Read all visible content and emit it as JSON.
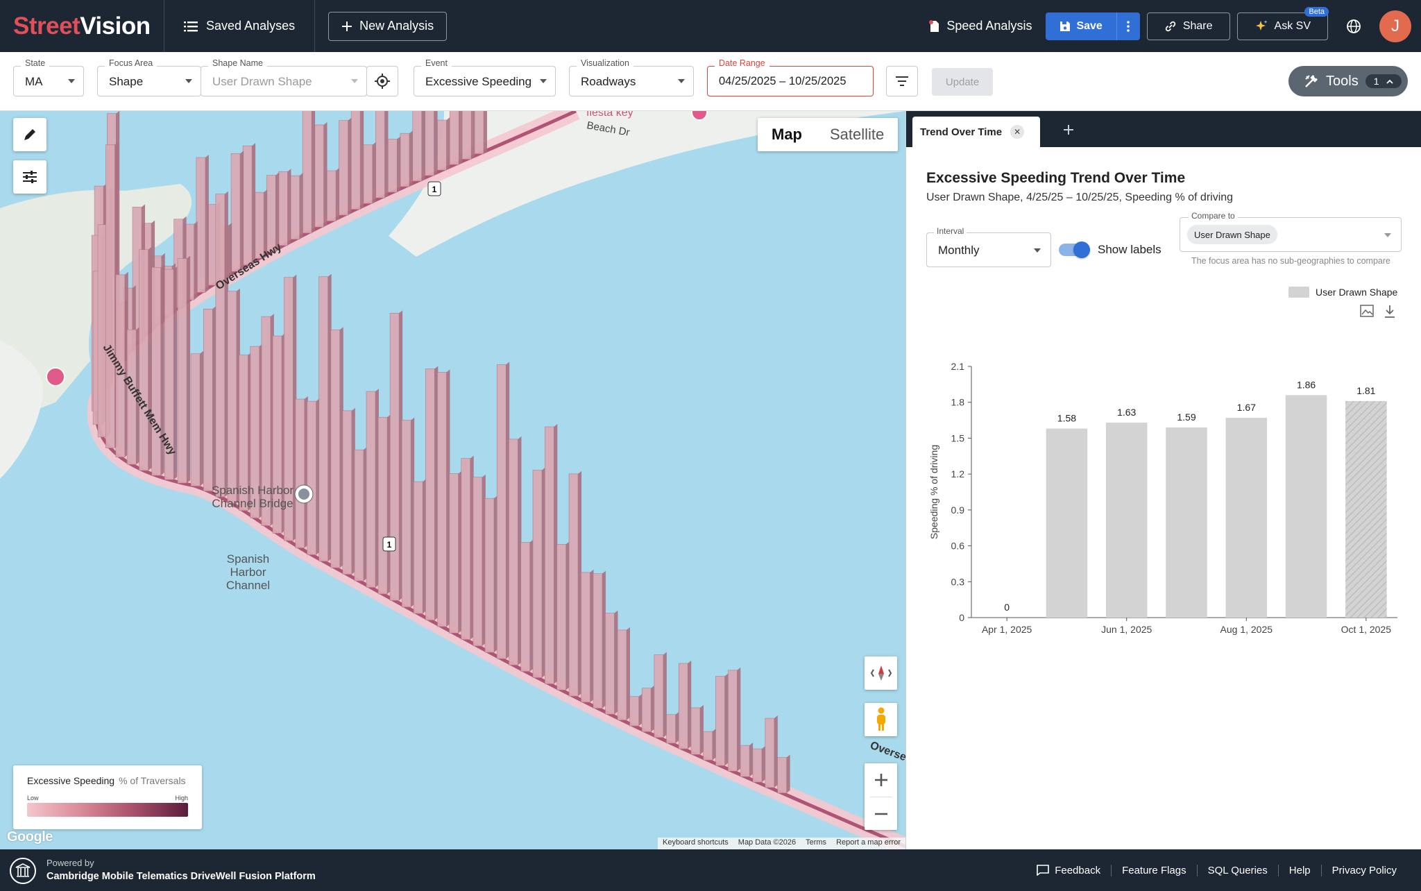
{
  "app": {
    "logo_part1": "Street",
    "logo_part2": "Vision"
  },
  "nav": {
    "saved_analyses": "Saved Analyses",
    "new_analysis": "New Analysis",
    "speed_analysis": "Speed Analysis",
    "save": "Save",
    "share": "Share",
    "ask_sv": "Ask SV",
    "beta": "Beta",
    "avatar_initial": "J"
  },
  "filters": {
    "state": {
      "label": "State",
      "value": "MA"
    },
    "focus_area": {
      "label": "Focus Area",
      "value": "Shape"
    },
    "shape_name": {
      "label": "Shape Name",
      "placeholder": "User Drawn Shape"
    },
    "event": {
      "label": "Event",
      "value": "Excessive Speeding"
    },
    "visualization": {
      "label": "Visualization",
      "value": "Roadways"
    },
    "date_range": {
      "label": "Date Range",
      "value": "04/25/2025 – 10/25/2025"
    },
    "update": "Update",
    "tools": "Tools",
    "tools_count": "1"
  },
  "map": {
    "view_map": "Map",
    "view_satellite": "Satellite",
    "labels": {
      "fiesta_key": "fiesta key",
      "beach_dr": "Beach Dr",
      "overseas_hwy": "Overseas Hwy",
      "overseas_hwy_2": "Overse",
      "jimmy_buffett": "Jimmy Buffett Mem Hwy",
      "bridge": "Spanish Harbor Channel Bridge",
      "channel": "Spanish Harbor Channel",
      "shield": "1"
    },
    "legend": {
      "title": "Excessive Speeding",
      "unit": "% of Traversals",
      "low": "Low",
      "high": "High"
    },
    "google": "Google",
    "attribution": [
      "Keyboard shortcuts",
      "Map Data ©2026",
      "Terms",
      "Report a map error"
    ],
    "colors": {
      "water": "#a8d9ec",
      "land": "#eef0ed",
      "bar": "#d9a9b3"
    }
  },
  "panel": {
    "tab_label": "Trend Over Time",
    "title": "Excessive Speeding Trend Over Time",
    "subtitle": "User Drawn Shape, 4/25/25 – 10/25/25, Speeding % of driving",
    "interval": {
      "label": "Interval",
      "value": "Monthly"
    },
    "show_labels": "Show labels",
    "compare": {
      "label": "Compare to",
      "chip": "User Drawn Shape"
    },
    "helper": "The focus area has no sub-geographies to compare",
    "legend_series": "User Drawn Shape"
  },
  "chart_data": {
    "type": "bar",
    "title": "Excessive Speeding Trend Over Time",
    "ylabel": "Speeding % of driving",
    "xlabel": "",
    "categories": [
      "Apr 2025",
      "May 2025",
      "Jun 2025",
      "Jul 2025",
      "Aug 2025",
      "Sep 2025",
      "Oct 2025"
    ],
    "x_tick_labels": [
      "Apr 1, 2025",
      "Jun 1, 2025",
      "Aug 1, 2025",
      "Oct 1, 2025"
    ],
    "series": [
      {
        "name": "User Drawn Shape",
        "values": [
          0,
          1.58,
          1.63,
          1.59,
          1.67,
          1.86,
          1.81
        ],
        "labels": [
          "0",
          "1.58",
          "1.63",
          "1.59",
          "1.67",
          "1.86",
          "1.81"
        ]
      }
    ],
    "partial_last": true,
    "ylim": [
      0,
      2.1
    ],
    "yticks": [
      "0",
      "0.3",
      "0.6",
      "0.9",
      "1.2",
      "1.5",
      "1.8",
      "2.1"
    ],
    "grid": false,
    "legend": "top-right",
    "color": "#d3d3d3"
  },
  "footer": {
    "powered_by": "Powered by",
    "platform": "Cambridge Mobile Telematics DriveWell Fusion Platform",
    "links": [
      "Feedback",
      "Feature Flags",
      "SQL Queries",
      "Help",
      "Privacy Policy"
    ]
  }
}
